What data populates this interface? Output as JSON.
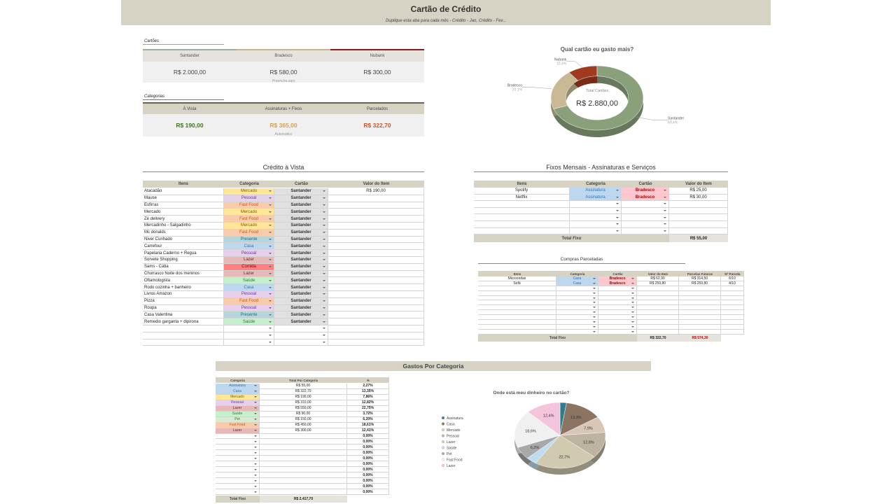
{
  "header": {
    "title": "Cartão de Crédito",
    "subtitle": "Duplique esta aba para cada mês - Crédito - Jan, Crédito - Fev..."
  },
  "cartoes": {
    "label": "Cartões",
    "note": "Preencha aqui",
    "cards": [
      {
        "name": "Santander",
        "value": "R$ 2.000,00",
        "color": "#9aaea6"
      },
      {
        "name": "Bradesco",
        "value": "R$ 580,00",
        "color": "#c8b48c"
      },
      {
        "name": "Nubank",
        "value": "R$ 300,00",
        "color": "#8b1a1a"
      }
    ]
  },
  "categorias": {
    "label": "Categorias",
    "note": "Automático",
    "items": [
      {
        "name": "À Vista",
        "value": "R$ 190,00",
        "color": "#3d7a1e"
      },
      {
        "name": "Assinaturas + Fixos",
        "value": "R$ 365,00",
        "color": "#d4a05c"
      },
      {
        "name": "Parcelados",
        "value": "R$ 322,70",
        "color": "#d2542c"
      }
    ]
  },
  "category_colors": {
    "Mercado": [
      "#ffe699",
      "#7f6000"
    ],
    "Pessoal": [
      "#e6d0ec",
      "#7030a0"
    ],
    "Fast Food": [
      "#f8cbad",
      "#c55a11"
    ],
    "Presente": [
      "#b4d6dc",
      "#1f6f78"
    ],
    "Casa": [
      "#bdd7ee",
      "#2e75b6"
    ],
    "Lazer": [
      "#e6b8b7",
      "#7a2020"
    ],
    "Comida": [
      "#ff8080",
      "#800000"
    ],
    "Saúde": [
      "#c6efce",
      "#2e7d32"
    ],
    "Assinatura": [
      "#bdd7ee",
      "#2e75b6"
    ],
    "Pet": [
      "#d9ead3",
      "#38761d"
    ]
  },
  "card_colors": {
    "Santander": [
      "#e0e0e0",
      "#333333"
    ],
    "Bradesco": [
      "#ffc7ce",
      "#9c0006"
    ]
  },
  "credito_vista": {
    "title": "Crédito à Vista",
    "columns": [
      "Itens",
      "Categoria",
      "Cartão",
      "Valor do Item"
    ],
    "rows": [
      [
        "Atacadão",
        "Mercado",
        "Santander",
        "R$ 190,00"
      ],
      [
        "Mause",
        "Pessoal",
        "Santander"
      ],
      [
        "Esfirras",
        "Fast Food",
        "Santander"
      ],
      [
        "Mercado",
        "Mercado",
        "Santander"
      ],
      [
        "Zé delivery",
        "Fast Food",
        "Santander"
      ],
      [
        "Mercadinho - Salgadinho",
        "Mercado",
        "Santander"
      ],
      [
        "Mc donalds",
        "Fast Food",
        "Santander"
      ],
      [
        "Niver Cunhado",
        "Presente",
        "Santander"
      ],
      [
        "Carrefour",
        "Casa",
        "Santander"
      ],
      [
        "Papelaria Caderno + Regua",
        "Pessoal",
        "Santander"
      ],
      [
        "Sorvete Shopping",
        "Lazer",
        "Santander"
      ],
      [
        "Sams - Cátia",
        "Comida",
        "Santander"
      ],
      [
        "Churrasco Noite dos meninos",
        "Lazer",
        "Santander"
      ],
      [
        "Oftamologista",
        "Saúde",
        "Santander"
      ],
      [
        "Rodo cozinha + banheiro",
        "Casa",
        "Santander"
      ],
      [
        "Livros Amazon",
        "Pessoal",
        "Santander"
      ],
      [
        "Pizza",
        "Fast Food",
        "Santander"
      ],
      [
        "Roupa",
        "Pessoal",
        "Santander"
      ],
      [
        "Casa Valentina",
        "Presente",
        "Santander"
      ],
      [
        "Remedio garganta + dipirona",
        "Saúde",
        "Santander"
      ]
    ]
  },
  "fixos": {
    "title": "Fixos Mensais - Assinaturas e Serviços",
    "columns": [
      "Itens",
      "Categoria",
      "Cartão",
      "Valor do Item"
    ],
    "rows": [
      [
        "Spotify",
        "Assinatura",
        "Bradesco",
        "R$ 25,00"
      ],
      [
        "Netflix",
        "Assinatura",
        "Bradesco",
        "R$ 30,00"
      ]
    ],
    "total_label": "Total Fixo",
    "total": "R$ 55,00"
  },
  "parcelados": {
    "title": "Compras Parceladas",
    "columns": [
      "Itens",
      "Categoria",
      "Cartão",
      "Valor do Item",
      "Parcelas Futuras",
      "Nº Parcela"
    ],
    "rows": [
      [
        "Microondas",
        "Casa",
        "Bradesco",
        "R$ 62,90",
        "R$ 314,50",
        "6/10"
      ],
      [
        "Sofá",
        "Casa",
        "Bradesco",
        "R$ 259,80",
        "R$ 259,80",
        "4/10"
      ]
    ],
    "total_label": "Total Fixo",
    "total": "R$ 322,70",
    "total_futuras": "R$ 574,30"
  },
  "gastos": {
    "title": "Gastos Por Categoria",
    "columns": [
      "Categoria",
      "Total Por Categoria",
      "%"
    ],
    "rows": [
      [
        "Assinatura",
        "R$ 55,00",
        "2,27%"
      ],
      [
        "Casa",
        "R$ 322,70",
        "13,35%"
      ],
      [
        "Mercado",
        "R$ 190,00",
        "7,86%"
      ],
      [
        "Pessoal",
        "R$ 310,00",
        "12,82%"
      ],
      [
        "Lazer",
        "R$ 550,00",
        "22,75%"
      ],
      [
        "Saúde",
        "R$ 90,00",
        "3,72%"
      ],
      [
        "Pet",
        "R$ 150,00",
        "6,20%"
      ],
      [
        "Fast Food",
        "R$ 450,00",
        "18,61%"
      ],
      [
        "Lazer",
        "R$ 300,00",
        "12,41%"
      ]
    ],
    "blank_rows": [
      "0,00%",
      "0,00%",
      "0,00%",
      "0,00%",
      "0,00%",
      "0,00%",
      "0,00%",
      "0,00%",
      "0,00%",
      "0,00%",
      "0,00%"
    ],
    "total_label": "Total Fixo",
    "total": "R$ 2.417,70"
  },
  "chart_data": [
    {
      "type": "donut",
      "title": "Qual cartão eu gasto mais?",
      "center_label": "Total Cartões",
      "center_value": "R$ 2.880,00",
      "categories": [
        "Nubank",
        "Bradesco",
        "Santander"
      ],
      "values": [
        10.4,
        20.1,
        69.4
      ],
      "value_labels": [
        "10,4%",
        "20,1%",
        "69,4%"
      ],
      "colors": [
        "#a03a1e",
        "#c8b894",
        "#8aa07a"
      ]
    },
    {
      "type": "pie",
      "title": "Onde está meu dinheiro no cartão?",
      "categories": [
        "Assinatura",
        "Casa",
        "Mercado",
        "Pessoal",
        "Lazer",
        "Saúde",
        "Pet",
        "Fast Food",
        "Lazer"
      ],
      "values": [
        2.3,
        13.3,
        7.9,
        12.8,
        22.7,
        3.7,
        6.2,
        18.6,
        12.4
      ],
      "value_labels": [
        null,
        "13,3%",
        "7,9%",
        "12,8%",
        "22,7%",
        null,
        "6,2%",
        "18,6%",
        "12,4%"
      ],
      "colors": [
        "#2e7d8c",
        "#8c7462",
        "#d8c6b8",
        "#bcb4a0",
        "#d0cbb0",
        "#c0dcf0",
        "#a8a8a8",
        "#f0f0f0",
        "#f4c4dc"
      ]
    }
  ]
}
